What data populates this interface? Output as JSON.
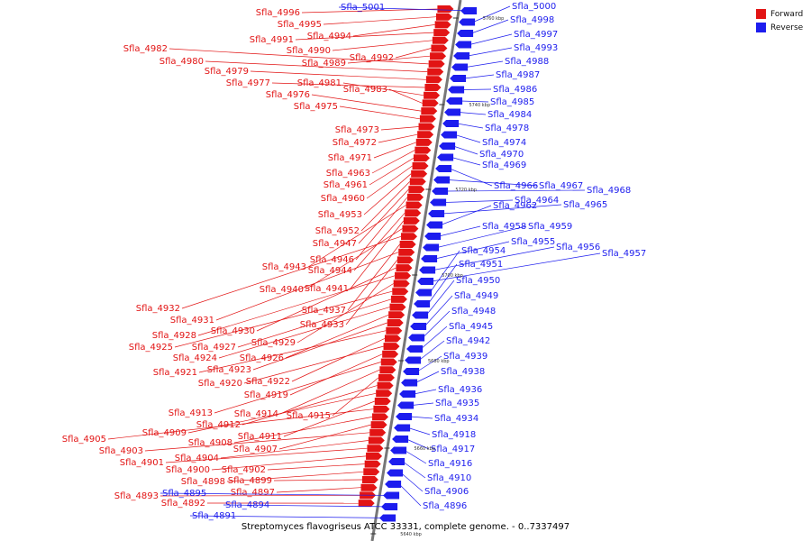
{
  "legend": {
    "forward_label": "Forward",
    "reverse_label": "Reverse",
    "forward_color": "#e21414",
    "reverse_color": "#1d1dee"
  },
  "caption": "Streptomyces flavogriseus ATCC 33331, complete genome. - 0..7337497",
  "ticks": [
    "5760 kbp",
    "5740 kbp",
    "5720 kbp",
    "5700 kbp",
    "5680 kbp",
    "5660 kbp",
    "5640 kbp"
  ],
  "forward_genes": [
    "Sfla_4996",
    "Sfla_4995",
    "Sfla_4994",
    "Sfla_4991",
    "Sfla_4990",
    "Sfla_4992",
    "Sfla_4989",
    "Sfla_4982",
    "Sfla_4980",
    "Sfla_4979",
    "Sfla_4977",
    "Sfla_4981",
    "Sfla_4983",
    "Sfla_4976",
    "Sfla_4975",
    "Sfla_4973",
    "Sfla_4972",
    "Sfla_4971",
    "Sfla_4963",
    "Sfla_4961",
    "Sfla_4960",
    "Sfla_4953",
    "Sfla_4952",
    "Sfla_4947",
    "Sfla_4946",
    "Sfla_4943",
    "Sfla_4944",
    "Sfla_4941",
    "Sfla_4940",
    "Sfla_4932",
    "Sfla_4937",
    "Sfla_4931",
    "Sfla_4933",
    "Sfla_4930",
    "Sfla_4928",
    "Sfla_4929",
    "Sfla_4925",
    "Sfla_4927",
    "Sfla_4924",
    "Sfla_4926",
    "Sfla_4923",
    "Sfla_4921",
    "Sfla_4922",
    "Sfla_4920",
    "Sfla_4919",
    "Sfla_4913",
    "Sfla_4914",
    "Sfla_4915",
    "Sfla_4912",
    "Sfla_4909",
    "Sfla_4911",
    "Sfla_4905",
    "Sfla_4908",
    "Sfla_4907",
    "Sfla_4903",
    "Sfla_4904",
    "Sfla_4901",
    "Sfla_4900",
    "Sfla_4902",
    "Sfla_4898",
    "Sfla_4899",
    "Sfla_4897",
    "Sfla_4893",
    "Sfla_4892"
  ],
  "reverse_genes": [
    "Sfla_5001",
    "Sfla_5000",
    "Sfla_4998",
    "Sfla_4997",
    "Sfla_4993",
    "Sfla_4988",
    "Sfla_4987",
    "Sfla_4986",
    "Sfla_4985",
    "Sfla_4984",
    "Sfla_4978",
    "Sfla_4974",
    "Sfla_4970",
    "Sfla_4969",
    "Sfla_4966",
    "Sfla_4967",
    "Sfla_4968",
    "Sfla_4964",
    "Sfla_4965",
    "Sfla_4962",
    "Sfla_4958",
    "Sfla_4959",
    "Sfla_4955",
    "Sfla_4956",
    "Sfla_4957",
    "Sfla_4954",
    "Sfla_4951",
    "Sfla_4950",
    "Sfla_4949",
    "Sfla_4948",
    "Sfla_4945",
    "Sfla_4942",
    "Sfla_4939",
    "Sfla_4938",
    "Sfla_4936",
    "Sfla_4935",
    "Sfla_4934",
    "Sfla_4918",
    "Sfla_4917",
    "Sfla_4916",
    "Sfla_4910",
    "Sfla_4906",
    "Sfla_4896",
    "Sfla_4895",
    "Sfla_4894",
    "Sfla_4891"
  ]
}
